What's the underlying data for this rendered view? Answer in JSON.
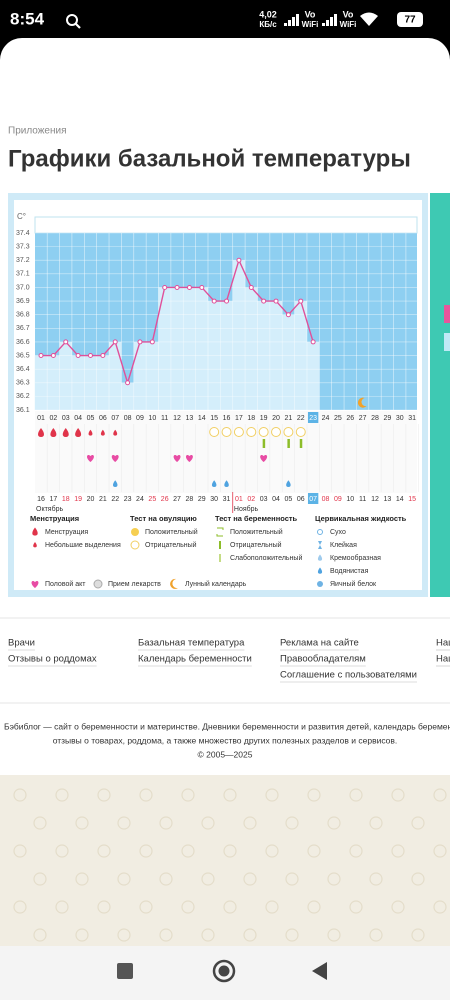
{
  "status_bar": {
    "time": "8:54",
    "speed_value": "4,02",
    "speed_unit": "КБ/с",
    "signals": [
      {
        "top": "Vo",
        "bottom": "WiFi"
      },
      {
        "top": "Vo",
        "bottom": "WiFi"
      }
    ],
    "battery": "77"
  },
  "breadcrumb": "Приложения",
  "title": "Графики базальной температуры",
  "chart": {
    "type": "line",
    "y_unit": "C°",
    "color": "#e0509a",
    "ylim": [
      36.1,
      37.4
    ],
    "yticks": [
      36.1,
      36.2,
      36.3,
      36.4,
      36.5,
      36.6,
      36.7,
      36.8,
      36.9,
      {
        "value": 37,
        "label": "37.0"
      },
      37.1,
      37.2,
      37.3,
      37.4
    ],
    "days": [
      "01",
      "02",
      "03",
      "04",
      "05",
      "06",
      "07",
      "08",
      "09",
      "10",
      "11",
      "12",
      "13",
      "14",
      "15",
      "16",
      "17",
      "18",
      "19",
      "20",
      "21",
      "22",
      "23",
      "24",
      "25",
      "26",
      "27",
      "28",
      "29",
      "30",
      "31"
    ],
    "values": [
      36.5,
      36.5,
      36.6,
      36.5,
      36.5,
      36.5,
      36.6,
      36.3,
      36.6,
      36.6,
      37.0,
      37.0,
      37.0,
      37.0,
      36.9,
      36.9,
      37.2,
      37.0,
      36.9,
      36.9,
      36.8,
      36.9,
      36.6,
      null,
      null,
      null,
      null,
      null,
      null,
      null,
      null
    ],
    "today": "23",
    "moon_day": "27",
    "events": {
      "menstruation": [
        "01",
        "02",
        "03",
        "04"
      ],
      "spotting": [
        "05",
        "06",
        "07"
      ],
      "ovulation_negative": [
        "15",
        "16",
        "17",
        "18",
        "19",
        "20",
        "21",
        "22"
      ],
      "pregnancy_positive": [
        "19",
        "21",
        "22"
      ],
      "intercourse": [
        "05",
        "07",
        "12",
        "13",
        "19"
      ],
      "cervical_watery": [
        "07",
        "15",
        "16",
        "21"
      ]
    },
    "months": [
      {
        "name": "Октябрь",
        "dates": [
          "16",
          "17",
          "18",
          "19",
          "20",
          "21",
          "22",
          "23",
          "24",
          "25",
          "26",
          "27",
          "28",
          "29",
          "30",
          "31"
        ],
        "weekend": [
          "18",
          "19",
          "25",
          "26"
        ]
      },
      {
        "name": "Ноябрь",
        "dates": [
          "01",
          "02",
          "03",
          "04",
          "05",
          "06",
          "07",
          "08",
          "09",
          "10",
          "11",
          "12",
          "13",
          "14",
          "15"
        ],
        "weekend": [
          "01",
          "02",
          "08",
          "09",
          "15"
        ],
        "today": "07"
      }
    ],
    "legend": [
      {
        "title": "Менструация",
        "items": [
          "Менструация",
          "Небольшие выделения"
        ]
      },
      {
        "title": "Тест на овуляцию",
        "items": [
          "Положительный",
          "Отрицательный"
        ]
      },
      {
        "title": "Тест на беременность",
        "items": [
          "Положительный",
          "Отрицательный",
          "Слабоположительный"
        ]
      },
      {
        "title": "Цервикальная жидкость",
        "items": [
          "Сухо",
          "Клейкая",
          "Кремообразная",
          "Водянистая",
          "Яичный белок"
        ]
      }
    ],
    "legend_extra": [
      "Половой акт",
      "Прием лекарств",
      "Лунный календарь"
    ]
  },
  "footer": {
    "columns": [
      [
        "Врачи",
        "Отзывы о роддомах"
      ],
      [
        "Базальная температура",
        "Календарь беременности"
      ],
      [
        "Реклама на сайте",
        "Правообладателям",
        "Соглашение с пользователями"
      ],
      [
        "Наш",
        "Наш"
      ]
    ],
    "about": [
      "Бэбиблог — сайт о беременности и материнстве. Дневники беременности и развития детей, календарь беремен",
      "отзывы о товарах, роддома, а также множество других полезных разделов и сервисов."
    ],
    "copyright": "© 2005—2025"
  }
}
